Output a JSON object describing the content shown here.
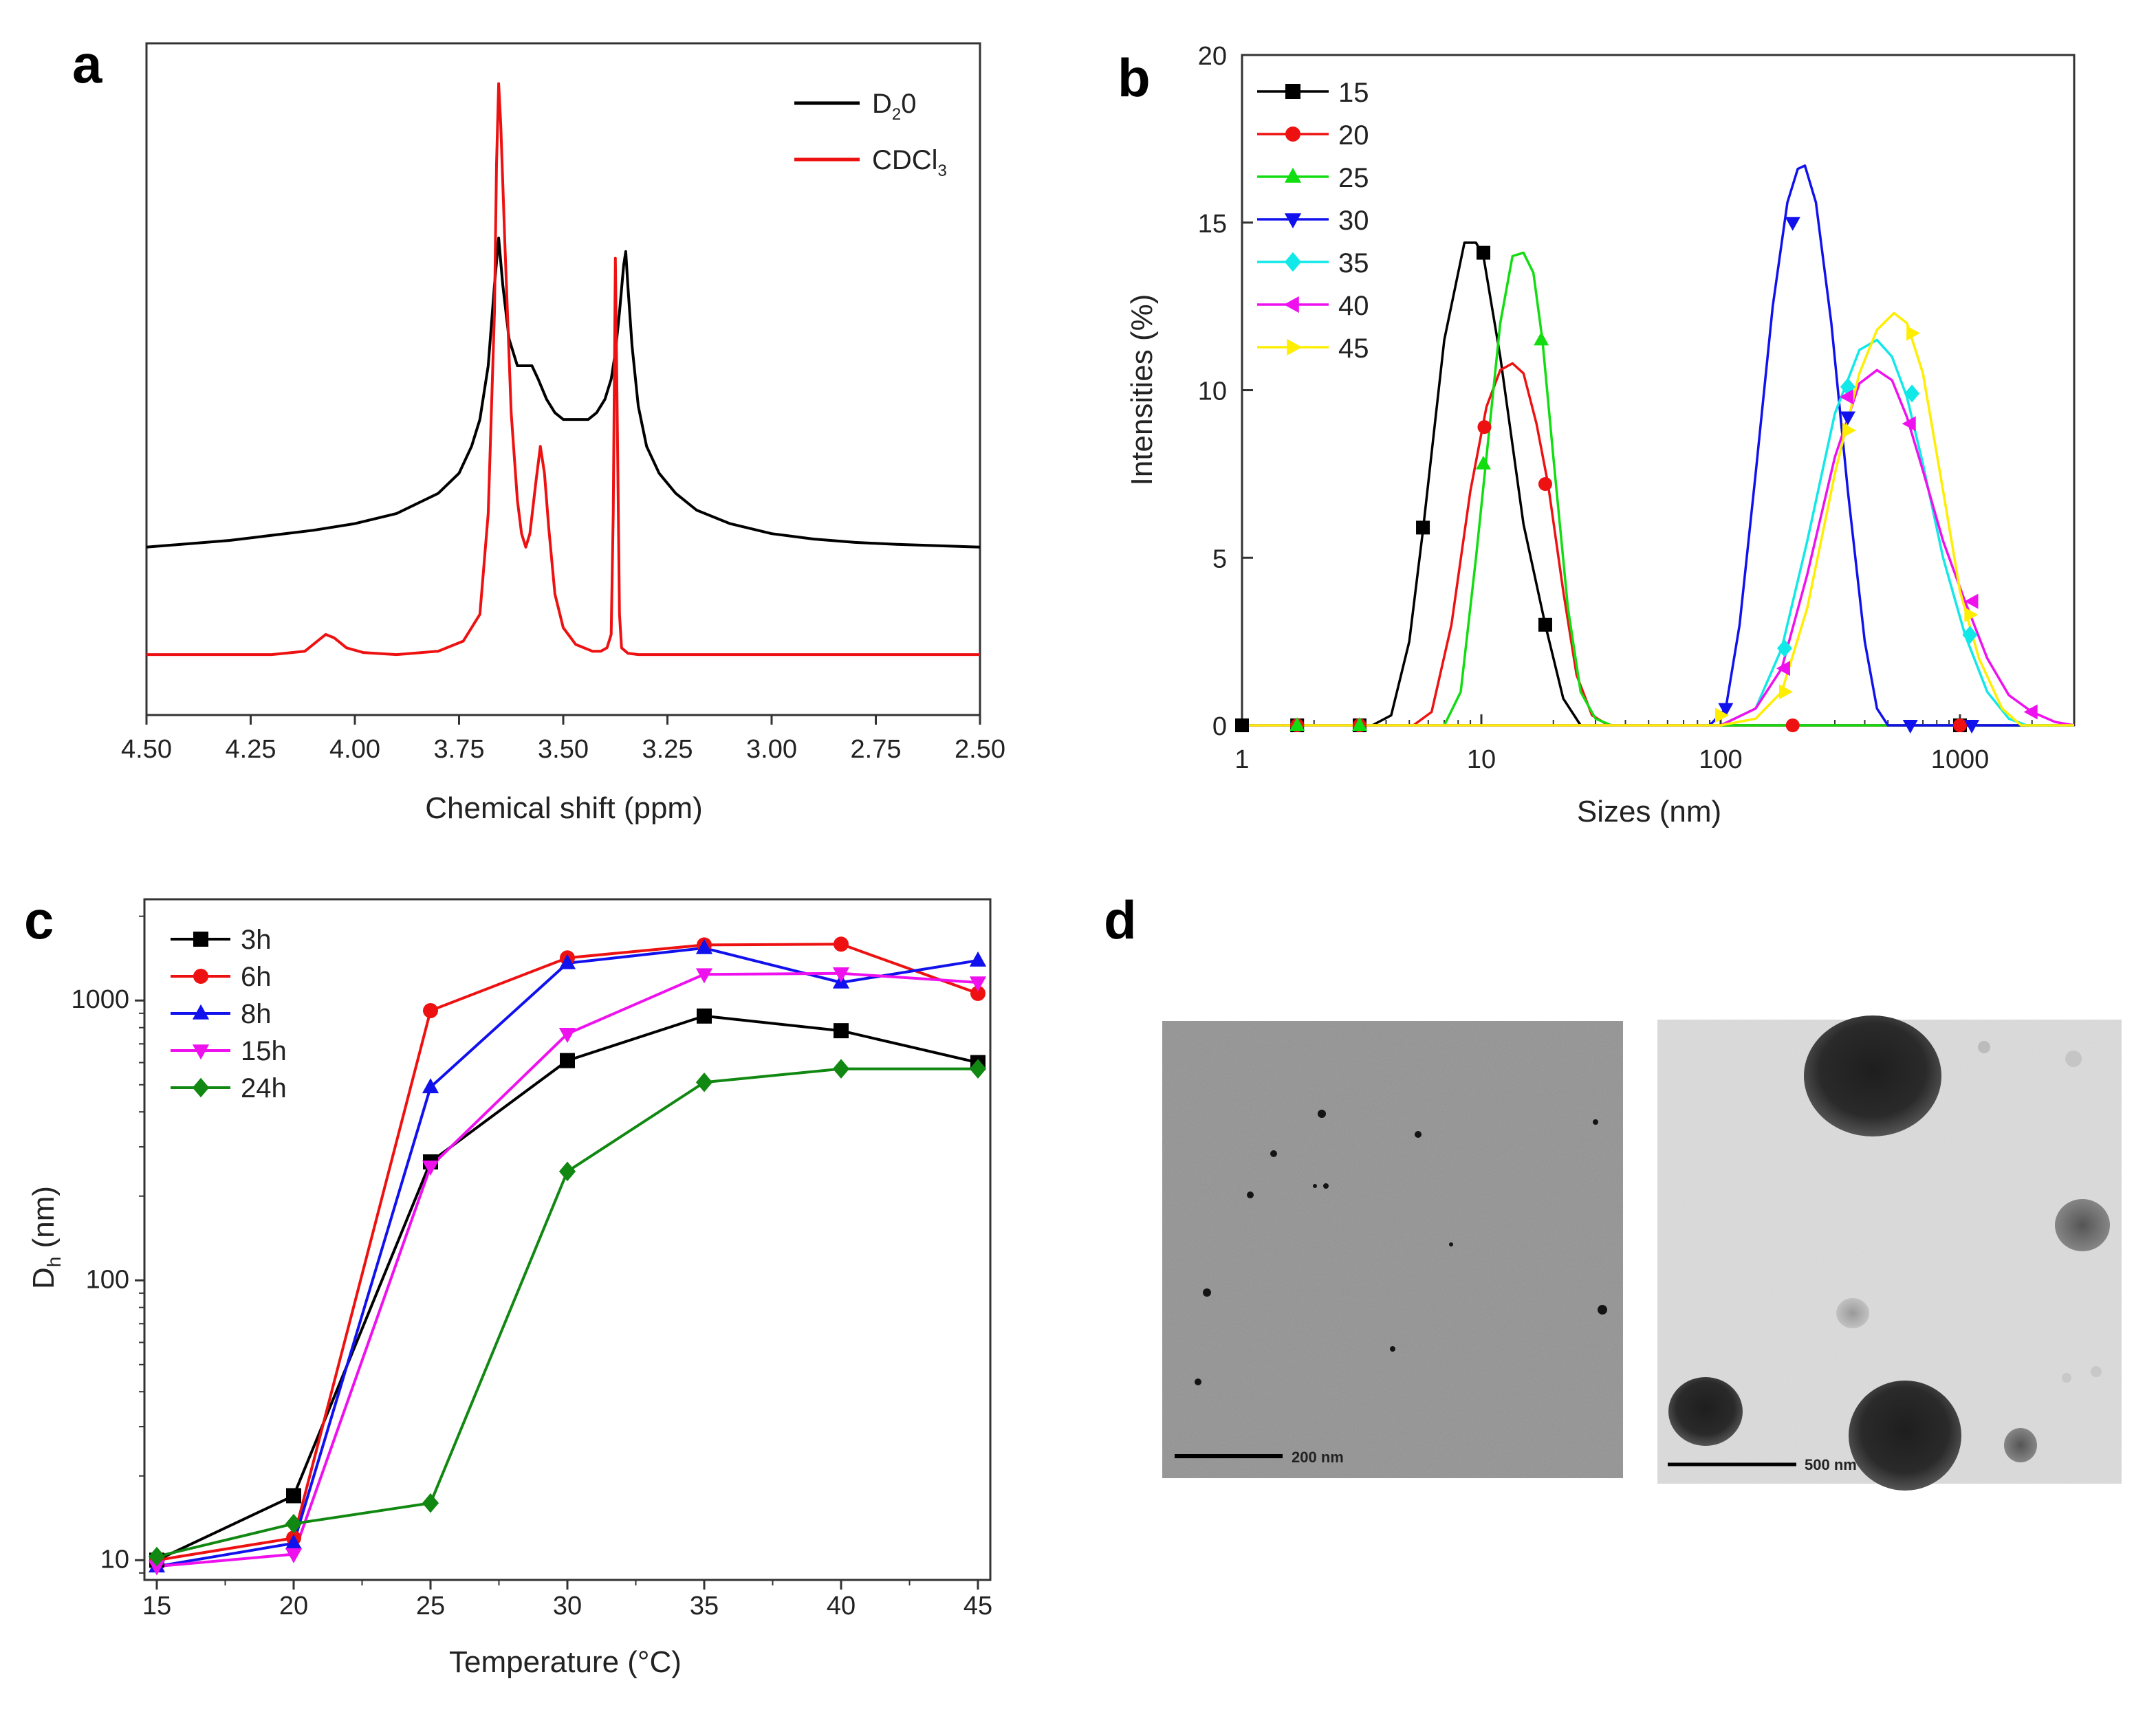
{
  "colors": {
    "black": "#000000",
    "red": "#ee1111",
    "green": "#11dd11",
    "blue": "#1111ee",
    "cyan": "#11e8e8",
    "magenta": "#ee11ee",
    "yellow": "#ffee00",
    "darkgreen": "#118811"
  },
  "panels": {
    "a": "a",
    "b": "b",
    "c": "c",
    "d": "d"
  },
  "chart_data": [
    {
      "panel": "a",
      "type": "line",
      "title": "",
      "xlabel": "Chemical shift (ppm)",
      "ylabel": "",
      "xlim": [
        4.5,
        2.5
      ],
      "ylim": [
        0,
        1
      ],
      "x_reversed": true,
      "xticks": [
        "4.50",
        "4.25",
        "4.00",
        "3.75",
        "3.50",
        "3.25",
        "3.00",
        "2.75",
        "2.50"
      ],
      "legend": [
        {
          "name": "D2O",
          "base": "D",
          "sub": "2",
          "rest": "0",
          "color": "#000000"
        },
        {
          "name": "CDCl3",
          "base": "CDCl",
          "sub": "3",
          "rest": "",
          "color": "#ee1111"
        }
      ],
      "series": [
        {
          "name": "D2O",
          "color": "#000000",
          "x": [
            4.5,
            4.3,
            4.1,
            4.0,
            3.9,
            3.8,
            3.75,
            3.72,
            3.7,
            3.68,
            3.665,
            3.655,
            3.645,
            3.63,
            3.61,
            3.59,
            3.575,
            3.56,
            3.54,
            3.52,
            3.5,
            3.47,
            3.44,
            3.42,
            3.4,
            3.385,
            3.375,
            3.365,
            3.355,
            3.35,
            3.345,
            3.335,
            3.32,
            3.3,
            3.27,
            3.23,
            3.18,
            3.1,
            3.0,
            2.9,
            2.8,
            2.7,
            2.6,
            2.5
          ],
          "y": [
            0.25,
            0.26,
            0.275,
            0.285,
            0.3,
            0.33,
            0.36,
            0.4,
            0.44,
            0.52,
            0.64,
            0.71,
            0.64,
            0.56,
            0.52,
            0.52,
            0.52,
            0.5,
            0.47,
            0.45,
            0.44,
            0.44,
            0.44,
            0.45,
            0.47,
            0.5,
            0.54,
            0.6,
            0.67,
            0.69,
            0.64,
            0.55,
            0.46,
            0.4,
            0.36,
            0.33,
            0.305,
            0.285,
            0.27,
            0.262,
            0.257,
            0.254,
            0.252,
            0.25
          ]
        },
        {
          "name": "CDCl3",
          "color": "#ee1111",
          "x": [
            4.5,
            4.2,
            4.12,
            4.09,
            4.07,
            4.05,
            4.02,
            3.98,
            3.9,
            3.8,
            3.74,
            3.7,
            3.68,
            3.665,
            3.66,
            3.655,
            3.65,
            3.64,
            3.625,
            3.61,
            3.6,
            3.59,
            3.58,
            3.565,
            3.555,
            3.545,
            3.535,
            3.52,
            3.5,
            3.47,
            3.43,
            3.41,
            3.395,
            3.385,
            3.38,
            3.375,
            3.37,
            3.365,
            3.36,
            3.345,
            3.32,
            3.25,
            3.0,
            2.75,
            2.5
          ],
          "y": [
            0.09,
            0.09,
            0.095,
            0.11,
            0.12,
            0.115,
            0.1,
            0.093,
            0.09,
            0.095,
            0.11,
            0.15,
            0.3,
            0.6,
            0.82,
            0.94,
            0.88,
            0.7,
            0.45,
            0.32,
            0.27,
            0.25,
            0.27,
            0.35,
            0.4,
            0.36,
            0.28,
            0.18,
            0.13,
            0.105,
            0.095,
            0.095,
            0.1,
            0.12,
            0.3,
            0.68,
            0.42,
            0.15,
            0.1,
            0.092,
            0.09,
            0.09,
            0.09,
            0.09,
            0.09
          ]
        }
      ]
    },
    {
      "panel": "b",
      "type": "line",
      "title": "",
      "xlabel": "Sizes (nm)",
      "ylabel": "Intensities (%)",
      "xscale": "log",
      "xlim": [
        1,
        3000
      ],
      "ylim": [
        0,
        20
      ],
      "xticks": [
        {
          "value": 1,
          "label": "1"
        },
        {
          "value": 10,
          "label": "10"
        },
        {
          "value": 100,
          "label": "100"
        },
        {
          "value": 1000,
          "label": "1000"
        }
      ],
      "yticks": [
        "0",
        "5",
        "10",
        "15",
        "20"
      ],
      "legend_position": "top-left",
      "series": [
        {
          "name": "15",
          "color": "#000000",
          "marker": "square",
          "x": [
            1,
            3.5,
            4.2,
            5,
            5.7,
            7,
            8.5,
            9.5,
            10.2,
            12,
            15,
            18.5,
            22,
            26,
            1000,
            3000
          ],
          "y": [
            0,
            0,
            0.3,
            2.5,
            5.8,
            11.5,
            14.4,
            14.4,
            14.0,
            11,
            6,
            3.0,
            0.8,
            0,
            0,
            0
          ],
          "markers_x": [
            1,
            1.7,
            3.1,
            5.7,
            10.2,
            18.5,
            1000
          ],
          "markers_y": [
            0,
            0,
            0,
            5.9,
            14.1,
            3.0,
            0
          ]
        },
        {
          "name": "20",
          "color": "#ee1111",
          "marker": "circle",
          "x": [
            1,
            5.2,
            6.2,
            7.5,
            9,
            10.5,
            12,
            13.5,
            15,
            17,
            19,
            22,
            25,
            29,
            34,
            3000
          ],
          "y": [
            0,
            0,
            0.4,
            3,
            7,
            9.5,
            10.6,
            10.8,
            10.5,
            9,
            7.2,
            4,
            1.5,
            0.3,
            0,
            0
          ],
          "markers_x": [
            1.7,
            3.1,
            10.3,
            18.5,
            200,
            1000
          ],
          "markers_y": [
            0,
            0,
            8.9,
            7.2,
            0,
            0
          ]
        },
        {
          "name": "25",
          "color": "#11dd11",
          "marker": "triangle-up",
          "x": [
            1,
            7,
            8.2,
            9.5,
            10.5,
            12,
            13.5,
            15,
            16.5,
            18,
            20,
            23,
            26,
            30,
            35,
            3000
          ],
          "y": [
            0,
            0,
            1,
            5,
            8,
            12,
            14.0,
            14.1,
            13.5,
            11.5,
            8,
            3.5,
            1,
            0.2,
            0,
            0
          ],
          "markers_x": [
            1.7,
            3.1,
            10.2,
            17.8
          ],
          "markers_y": [
            0,
            0,
            7.8,
            11.5
          ]
        },
        {
          "name": "30",
          "color": "#1111ee",
          "marker": "triangle-down",
          "x": [
            1,
            90,
            105,
            120,
            140,
            165,
            190,
            210,
            225,
            250,
            290,
            340,
            400,
            450,
            500,
            3000
          ],
          "y": [
            0,
            0,
            0.5,
            3,
            7.5,
            12.5,
            15.6,
            16.6,
            16.7,
            15.6,
            12,
            7,
            2.5,
            0.5,
            0,
            0
          ],
          "markers_x": [
            105,
            200,
            340,
            620,
            1120
          ],
          "markers_y": [
            0.5,
            15.0,
            9.2,
            0,
            0
          ]
        },
        {
          "name": "35",
          "color": "#11e8e8",
          "marker": "diamond",
          "x": [
            1,
            100,
            140,
            180,
            230,
            300,
            380,
            450,
            520,
            600,
            700,
            850,
            1050,
            1300,
            1600,
            1900,
            3000
          ],
          "y": [
            0,
            0,
            0.5,
            2.3,
            5.5,
            9.3,
            11.2,
            11.5,
            11.0,
            9.8,
            7.8,
            5,
            2.7,
            1,
            0.2,
            0,
            0
          ],
          "markers_x": [
            185,
            340,
            630,
            1100
          ],
          "markers_y": [
            2.3,
            10.1,
            9.9,
            2.7
          ]
        },
        {
          "name": "40",
          "color": "#ee11ee",
          "marker": "triangle-left",
          "x": [
            1,
            100,
            140,
            180,
            230,
            300,
            380,
            450,
            520,
            600,
            700,
            850,
            1050,
            1300,
            1600,
            2000,
            2500,
            3000
          ],
          "y": [
            0,
            0,
            0.5,
            1.7,
            4.5,
            8,
            10.2,
            10.6,
            10.3,
            9.2,
            7.6,
            5.5,
            3.7,
            2,
            0.9,
            0.4,
            0.1,
            0
          ],
          "markers_x": [
            185,
            340,
            620,
            1130,
            2000
          ],
          "markers_y": [
            1.7,
            9.8,
            9.0,
            3.7,
            0.4
          ]
        },
        {
          "name": "45",
          "color": "#ffee00",
          "marker": "triangle-right",
          "x": [
            1,
            100,
            140,
            180,
            230,
            300,
            380,
            450,
            530,
            600,
            700,
            850,
            1000,
            1200,
            1500,
            1800,
            3000
          ],
          "y": [
            0,
            0,
            0.2,
            1,
            3.5,
            7.5,
            10.5,
            11.8,
            12.3,
            12.0,
            10.5,
            7,
            4,
            2,
            0.5,
            0,
            0
          ],
          "markers_x": [
            100,
            185,
            340,
            630,
            1100
          ],
          "markers_y": [
            0.3,
            1.0,
            8.8,
            11.7,
            3.3
          ]
        }
      ]
    },
    {
      "panel": "c",
      "type": "line",
      "title": "",
      "xlabel": "Temperature (°C)",
      "ylabel": "D",
      "ylabel_sub": "h",
      "ylabel_rest": " (nm)",
      "yscale": "log",
      "xlim": [
        15,
        45
      ],
      "ylim": [
        8.5,
        2300
      ],
      "xticks": [
        "15",
        "20",
        "25",
        "30",
        "35",
        "40",
        "45"
      ],
      "yticks": [
        {
          "value": 10,
          "label": "10"
        },
        {
          "value": 100,
          "label": "100"
        },
        {
          "value": 1000,
          "label": "1000"
        }
      ],
      "categories": [
        15,
        20,
        25,
        30,
        35,
        40,
        45
      ],
      "legend_position": "top-left",
      "series": [
        {
          "name": "3h",
          "color": "#000000",
          "marker": "square",
          "values": [
            10,
            17,
            265,
            610,
            880,
            780,
            600
          ]
        },
        {
          "name": "6h",
          "color": "#ee1111",
          "marker": "circle",
          "values": [
            10,
            12,
            920,
            1420,
            1580,
            1590,
            1060
          ]
        },
        {
          "name": "8h",
          "color": "#1111ee",
          "marker": "triangle-up",
          "values": [
            9.5,
            11.5,
            490,
            1360,
            1540,
            1160,
            1390
          ]
        },
        {
          "name": "15h",
          "color": "#ee11ee",
          "marker": "triangle-down",
          "values": [
            9.5,
            10.5,
            255,
            760,
            1240,
            1250,
            1160
          ]
        },
        {
          "name": "24h",
          "color": "#118811",
          "marker": "diamond",
          "values": [
            10.3,
            13.5,
            16,
            245,
            510,
            570,
            570
          ]
        }
      ]
    }
  ],
  "micrographs": {
    "left": {
      "scale_label": "200 nm"
    },
    "right": {
      "scale_label": "500 nm"
    }
  }
}
